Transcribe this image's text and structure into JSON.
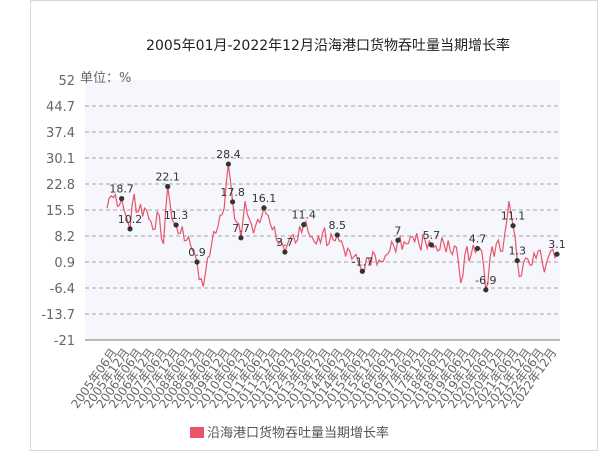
{
  "chart_data": {
    "type": "line",
    "title": "2005年01月-2022年12月沿海港口货物吞吐量当期增长率",
    "unit_label": "单位：%",
    "legend": "沿海港口货物吞吐量当期增长率",
    "series_color": "#e8546b",
    "plot_bg": "#f6f7fd",
    "ylim": [
      -21,
      52
    ],
    "y_ticks": [
      52,
      44.7,
      37.4,
      30.1,
      22.8,
      15.5,
      8.2,
      0.9,
      -6.4,
      -13.7,
      -21
    ],
    "y_tick_labels": [
      "52",
      "44.7",
      "37.4",
      "30.1",
      "22.8",
      "15.5",
      "8.2",
      "0.9",
      "-6.4",
      "-13.7",
      "-21"
    ],
    "x_tick_labels": [
      "2005年06月",
      "2005年12月",
      "2006年06月",
      "2006年12月",
      "2007年06月",
      "2007年12月",
      "2008年06月",
      "2008年12月",
      "2009年06月",
      "2009年12月",
      "2010年06月",
      "2010年12月",
      "2011年06月",
      "2011年12月",
      "2012年06月",
      "2012年12月",
      "2013年06月",
      "2013年12月",
      "2014年06月",
      "2014年12月",
      "2015年06月",
      "2015年12月",
      "2016年06月",
      "2016年12月",
      "2017年06月",
      "2017年12月",
      "2018年06月",
      "2018年12月",
      "2019年06月",
      "2019年12月",
      "2020年06月",
      "2020年12月",
      "2021年06月",
      "2021年12月",
      "2022年06月",
      "2022年12月"
    ],
    "start_year": 2005,
    "start_month": 1,
    "anchors": [
      [
        "2005-01",
        16
      ],
      [
        "2005-03",
        19.5
      ],
      [
        "2005-06",
        16.5
      ],
      [
        "2005-08",
        18.7
      ],
      [
        "2005-10",
        14
      ],
      [
        "2005-12",
        10.2
      ],
      [
        "2006-02",
        20
      ],
      [
        "2006-04",
        15
      ],
      [
        "2006-07",
        16
      ],
      [
        "2006-09",
        13
      ],
      [
        "2006-11",
        10
      ],
      [
        "2007-02",
        14
      ],
      [
        "2007-04",
        6
      ],
      [
        "2007-06",
        22.1
      ],
      [
        "2007-08",
        13
      ],
      [
        "2007-10",
        11.3
      ],
      [
        "2007-12",
        9
      ],
      [
        "2008-03",
        7
      ],
      [
        "2008-06",
        4
      ],
      [
        "2008-08",
        0.9
      ],
      [
        "2008-09",
        -4
      ],
      [
        "2008-11",
        -6
      ],
      [
        "2009-01",
        2
      ],
      [
        "2009-03",
        6
      ],
      [
        "2009-05",
        9
      ],
      [
        "2009-07",
        14
      ],
      [
        "2009-09",
        16
      ],
      [
        "2009-11",
        28.4
      ],
      [
        "2010-01",
        17.8
      ],
      [
        "2010-03",
        12
      ],
      [
        "2010-05",
        7.7
      ],
      [
        "2010-07",
        18
      ],
      [
        "2010-09",
        13
      ],
      [
        "2010-11",
        9
      ],
      [
        "2011-02",
        12
      ],
      [
        "2011-04",
        16.1
      ],
      [
        "2011-06",
        14
      ],
      [
        "2011-08",
        10
      ],
      [
        "2011-11",
        6
      ],
      [
        "2012-02",
        3.7
      ],
      [
        "2012-05",
        8
      ],
      [
        "2012-08",
        7
      ],
      [
        "2012-11",
        11.4
      ],
      [
        "2013-02",
        8
      ],
      [
        "2013-05",
        6
      ],
      [
        "2013-08",
        9
      ],
      [
        "2013-11",
        6
      ],
      [
        "2014-03",
        8.5
      ],
      [
        "2014-06",
        5
      ],
      [
        "2014-09",
        4
      ],
      [
        "2014-12",
        3
      ],
      [
        "2015-03",
        -1.7
      ],
      [
        "2015-06",
        2
      ],
      [
        "2015-09",
        3
      ],
      [
        "2015-12",
        1
      ],
      [
        "2016-04",
        4
      ],
      [
        "2016-08",
        7
      ],
      [
        "2016-12",
        6
      ],
      [
        "2017-03",
        8
      ],
      [
        "2017-06",
        6
      ],
      [
        "2017-09",
        7
      ],
      [
        "2017-12",
        5.7
      ],
      [
        "2018-03",
        4
      ],
      [
        "2018-06",
        6
      ],
      [
        "2018-09",
        4
      ],
      [
        "2018-12",
        5
      ],
      [
        "2019-02",
        -5
      ],
      [
        "2019-04",
        3
      ],
      [
        "2019-07",
        3
      ],
      [
        "2019-10",
        4.7
      ],
      [
        "2019-12",
        4
      ],
      [
        "2020-02",
        -6.9
      ],
      [
        "2020-04",
        2
      ],
      [
        "2020-07",
        6
      ],
      [
        "2020-10",
        4
      ],
      [
        "2021-01",
        18
      ],
      [
        "2021-03",
        11.1
      ],
      [
        "2021-05",
        1.3
      ],
      [
        "2021-07",
        -3
      ],
      [
        "2021-09",
        2
      ],
      [
        "2021-12",
        0
      ],
      [
        "2022-03",
        4
      ],
      [
        "2022-06",
        -2
      ],
      [
        "2022-09",
        4
      ],
      [
        "2022-12",
        3.1
      ]
    ],
    "labeled_points": [
      {
        "x": "2005-08",
        "y": 18.7,
        "label": "18.7"
      },
      {
        "x": "2005-12",
        "y": 10.2,
        "label": "10.2"
      },
      {
        "x": "2007-06",
        "y": 22.1,
        "label": "22.1"
      },
      {
        "x": "2007-10",
        "y": 11.3,
        "label": "11.3"
      },
      {
        "x": "2008-08",
        "y": 0.9,
        "label": "0.9"
      },
      {
        "x": "2009-11",
        "y": 28.4,
        "label": "28.4"
      },
      {
        "x": "2010-01",
        "y": 17.8,
        "label": "17.8"
      },
      {
        "x": "2010-05",
        "y": 7.7,
        "label": "7.7"
      },
      {
        "x": "2011-04",
        "y": 16.1,
        "label": "16.1"
      },
      {
        "x": "2012-02",
        "y": 3.7,
        "label": "3.7"
      },
      {
        "x": "2012-11",
        "y": 11.4,
        "label": "11.4"
      },
      {
        "x": "2014-03",
        "y": 8.5,
        "label": "8.5"
      },
      {
        "x": "2015-03",
        "y": -1.7,
        "label": "-1.7"
      },
      {
        "x": "2016-08",
        "y": 7,
        "label": "7"
      },
      {
        "x": "2017-12",
        "y": 5.7,
        "label": "5.7"
      },
      {
        "x": "2019-10",
        "y": 4.7,
        "label": "4.7"
      },
      {
        "x": "2020-02",
        "y": -6.9,
        "label": "-6.9"
      },
      {
        "x": "2021-03",
        "y": 11.1,
        "label": "11.1"
      },
      {
        "x": "2021-05",
        "y": 1.3,
        "label": "1.3"
      },
      {
        "x": "2022-12",
        "y": 3.1,
        "label": "3.1"
      }
    ],
    "grid": true,
    "legend_position": "bottom-center"
  }
}
